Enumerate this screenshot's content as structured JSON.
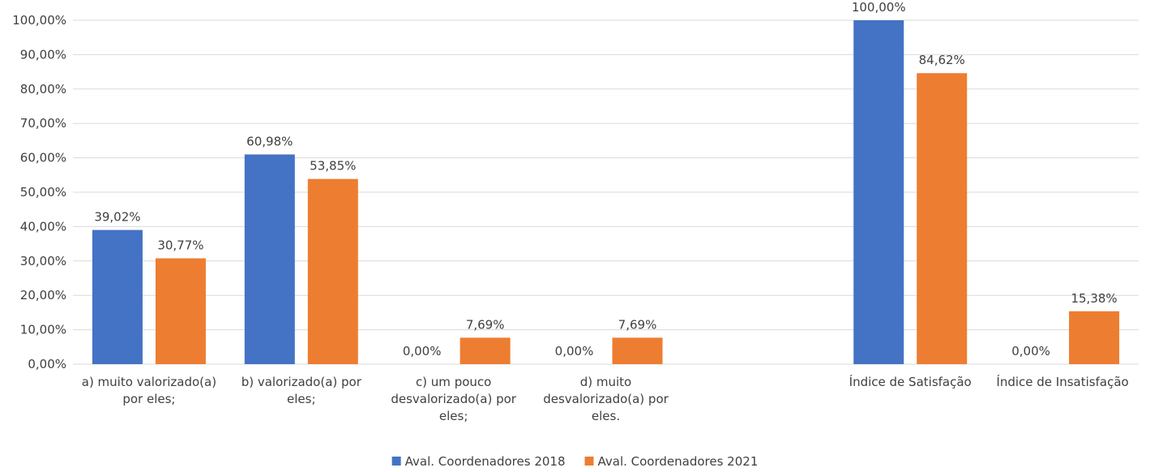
{
  "chart_data": {
    "type": "bar",
    "categories": [
      [
        "a) muito valorizado(a)",
        "por eles;"
      ],
      [
        "b) valorizado(a) por",
        "eles;"
      ],
      [
        "c) um pouco",
        "desvalorizado(a) por",
        "eles;"
      ],
      [
        "d) muito",
        "desvalorizado(a) por",
        "eles."
      ],
      [
        ""
      ],
      [
        "Índice de Satisfação"
      ],
      [
        "Índice de Insatisfação"
      ]
    ],
    "series": [
      {
        "name": "Aval. Coordenadores 2018",
        "color": "#4472C4",
        "values": [
          39.02,
          60.98,
          0.0,
          0.0,
          null,
          100.0,
          0.0
        ],
        "labels": [
          "39,02%",
          "60,98%",
          "0,00%",
          "0,00%",
          "",
          "100,00%",
          "0,00%"
        ]
      },
      {
        "name": "Aval. Coordenadores 2021",
        "color": "#ED7D31",
        "values": [
          30.77,
          53.85,
          7.69,
          7.69,
          null,
          84.62,
          15.38
        ],
        "labels": [
          "30,77%",
          "53,85%",
          "7,69%",
          "7,69%",
          "",
          "84,62%",
          "15,38%"
        ]
      }
    ],
    "ylim": [
      0,
      100
    ],
    "yticks": [
      "0,00%",
      "10,00%",
      "20,00%",
      "30,00%",
      "40,00%",
      "50,00%",
      "60,00%",
      "70,00%",
      "80,00%",
      "90,00%",
      "100,00%"
    ],
    "grid": true,
    "legend": "bottom",
    "title": "",
    "xlabel": "",
    "ylabel": ""
  }
}
